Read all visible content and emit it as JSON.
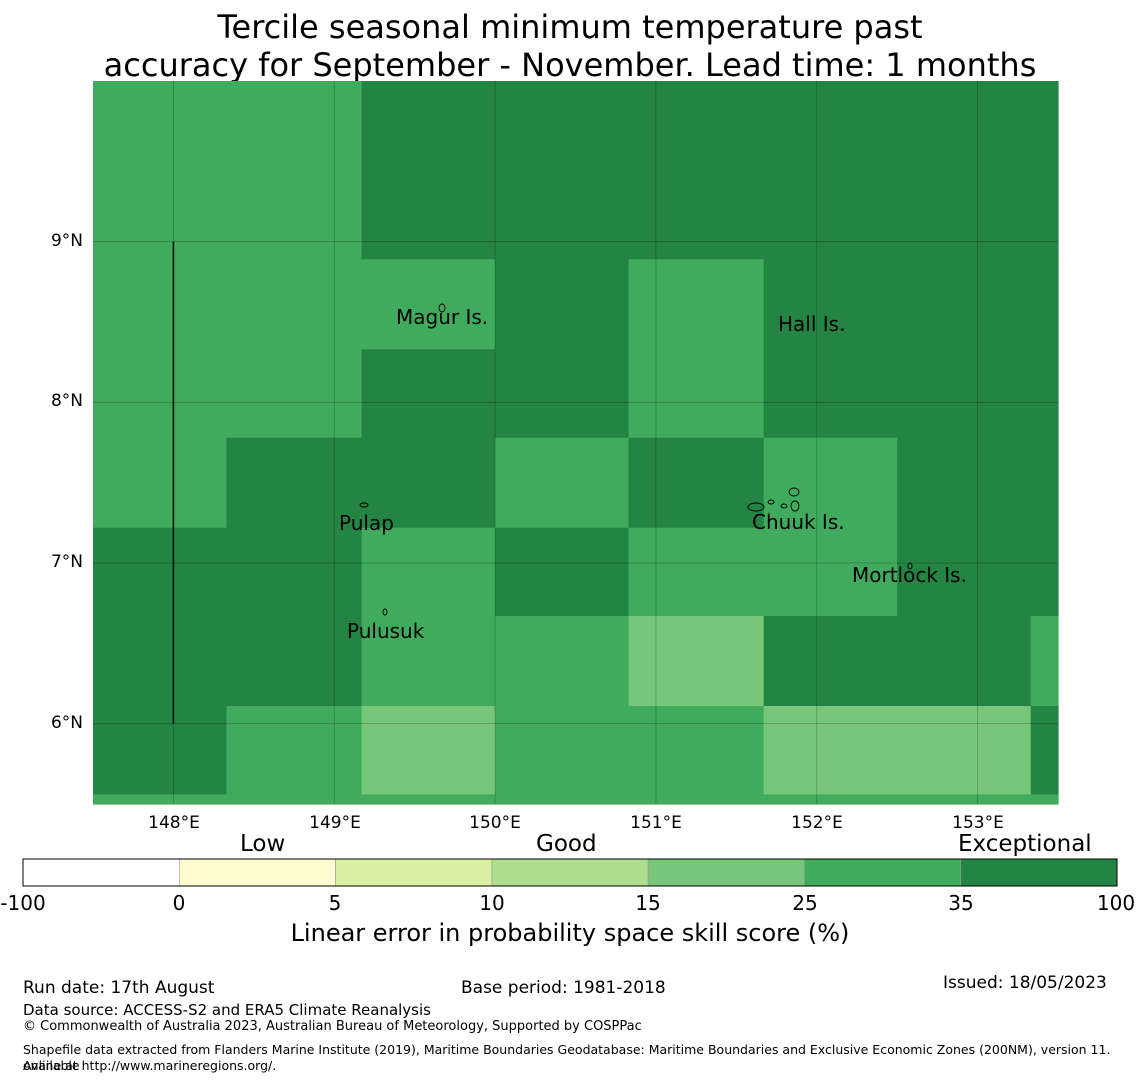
{
  "title": {
    "line1": "Tercile seasonal minimum temperature past",
    "line2": "accuracy for September - November. Lead time: 1 months"
  },
  "map": {
    "lon_labels": [
      "148°E",
      "149°E",
      "150°E",
      "151°E",
      "152°E",
      "153°E"
    ],
    "lat_labels": [
      "9°N",
      "8°N",
      "7°N",
      "6°N"
    ],
    "lon_range": [
      147.5,
      153.5
    ],
    "lat_range": [
      5.5,
      10.0
    ],
    "gridlines": true,
    "places": [
      {
        "name": "Magur Is.",
        "lon": 149.38,
        "lat": 8.5
      },
      {
        "name": "Hall Is.",
        "lon": 151.75,
        "lat": 8.46
      },
      {
        "name": "Pulap",
        "lon": 149.03,
        "lat": 7.24
      },
      {
        "name": "Chuuk Is.",
        "lon": 151.6,
        "lat": 7.25
      },
      {
        "name": "Mortlock Is.",
        "lon": 152.22,
        "lat": 6.92
      },
      {
        "name": "Pulusuk",
        "lon": 149.08,
        "lat": 6.58
      }
    ],
    "cells": [
      {
        "lon0": 147.5,
        "lon1": 149.17,
        "lat0": 8.89,
        "lat1": 10.0,
        "cls": "g35"
      },
      {
        "lon0": 149.17,
        "lon1": 153.5,
        "lat0": 8.89,
        "lat1": 10.0,
        "cls": "g100"
      },
      {
        "lon0": 147.5,
        "lon1": 149.17,
        "lat0": 8.33,
        "lat1": 8.89,
        "cls": "g35"
      },
      {
        "lon0": 149.17,
        "lon1": 150.0,
        "lat0": 8.33,
        "lat1": 8.89,
        "cls": "g35"
      },
      {
        "lon0": 150.0,
        "lon1": 150.83,
        "lat0": 7.78,
        "lat1": 8.89,
        "cls": "g100"
      },
      {
        "lon0": 150.83,
        "lon1": 151.67,
        "lat0": 7.78,
        "lat1": 8.89,
        "cls": "g35"
      },
      {
        "lon0": 151.67,
        "lon1": 153.5,
        "lat0": 7.78,
        "lat1": 8.89,
        "cls": "g100"
      },
      {
        "lon0": 147.5,
        "lon1": 149.17,
        "lat0": 7.78,
        "lat1": 8.33,
        "cls": "g35"
      },
      {
        "lon0": 149.17,
        "lon1": 150.0,
        "lat0": 7.78,
        "lat1": 8.33,
        "cls": "g100"
      },
      {
        "lon0": 147.5,
        "lon1": 148.33,
        "lat0": 7.22,
        "lat1": 7.78,
        "cls": "g35"
      },
      {
        "lon0": 148.33,
        "lon1": 150.0,
        "lat0": 7.22,
        "lat1": 7.78,
        "cls": "g100"
      },
      {
        "lon0": 150.0,
        "lon1": 150.83,
        "lat0": 7.22,
        "lat1": 7.78,
        "cls": "g35"
      },
      {
        "lon0": 150.83,
        "lon1": 151.67,
        "lat0": 7.22,
        "lat1": 7.78,
        "cls": "g100"
      },
      {
        "lon0": 151.67,
        "lon1": 152.5,
        "lat0": 7.22,
        "lat1": 7.78,
        "cls": "g35"
      },
      {
        "lon0": 152.5,
        "lon1": 153.5,
        "lat0": 7.22,
        "lat1": 7.78,
        "cls": "g100"
      },
      {
        "lon0": 147.5,
        "lon1": 149.17,
        "lat0": 6.11,
        "lat1": 7.22,
        "cls": "g100"
      },
      {
        "lon0": 149.17,
        "lon1": 150.0,
        "lat0": 6.11,
        "lat1": 7.22,
        "cls": "g35"
      },
      {
        "lon0": 150.0,
        "lon1": 150.83,
        "lat0": 6.67,
        "lat1": 7.22,
        "cls": "g100"
      },
      {
        "lon0": 150.83,
        "lon1": 152.5,
        "lat0": 6.67,
        "lat1": 7.22,
        "cls": "g35"
      },
      {
        "lon0": 152.5,
        "lon1": 153.5,
        "lat0": 6.67,
        "lat1": 7.22,
        "cls": "g100"
      },
      {
        "lon0": 150.0,
        "lon1": 150.83,
        "lat0": 6.11,
        "lat1": 6.67,
        "cls": "g35"
      },
      {
        "lon0": 150.83,
        "lon1": 151.67,
        "lat0": 6.11,
        "lat1": 6.67,
        "cls": "g25"
      },
      {
        "lon0": 151.67,
        "lon1": 153.33,
        "lat0": 6.11,
        "lat1": 6.67,
        "cls": "g100"
      },
      {
        "lon0": 153.33,
        "lon1": 153.5,
        "lat0": 6.11,
        "lat1": 6.67,
        "cls": "g35"
      },
      {
        "lon0": 147.5,
        "lon1": 148.33,
        "lat0": 5.56,
        "lat1": 6.11,
        "cls": "g100"
      },
      {
        "lon0": 148.33,
        "lon1": 149.17,
        "lat0": 5.56,
        "lat1": 6.11,
        "cls": "g35"
      },
      {
        "lon0": 149.17,
        "lon1": 150.0,
        "lat0": 5.56,
        "lat1": 6.11,
        "cls": "g25"
      },
      {
        "lon0": 150.0,
        "lon1": 151.67,
        "lat0": 5.56,
        "lat1": 6.11,
        "cls": "g35"
      },
      {
        "lon0": 151.67,
        "lon1": 153.33,
        "lat0": 5.56,
        "lat1": 6.11,
        "cls": "g25"
      },
      {
        "lon0": 153.33,
        "lon1": 153.5,
        "lat0": 5.56,
        "lat1": 6.11,
        "cls": "g100"
      },
      {
        "lon0": 147.5,
        "lon1": 153.5,
        "lat0": 5.5,
        "lat1": 5.56,
        "cls": "g35"
      }
    ],
    "boundary_line": {
      "lon": 148.0,
      "lat0": 6.0,
      "lat1": 9.0
    }
  },
  "colorbar": {
    "categories": [
      "Low",
      "Good",
      "Exceptional"
    ],
    "ticks": [
      "-100",
      "0",
      "5",
      "10",
      "15",
      "25",
      "35",
      "100"
    ],
    "colors": [
      "#ffffff",
      "#fffdd0",
      "#d9f0a3",
      "#addd8e",
      "#78c679",
      "#41ab5d",
      "#238443"
    ],
    "label": "Linear error in probability space skill score (%)"
  },
  "palette": {
    "g25": "#78c679",
    "g35": "#41ab5d",
    "g100": "#238443"
  },
  "footer": {
    "run_date": "Run date: 17th August",
    "base_period": "Base period: 1981-2018",
    "issued": "Issued: 18/05/2023",
    "data_source": "Data source: ACCESS-S2 and ERA5 Climate Reanalysis",
    "copyright": "© Commonwealth of Australia 2023, Australian Bureau of Meteorology, Supported by COSPPac",
    "shapefile_1": "Shapefile data extracted from Flanders Marine Institute (2019), Maritime Boundaries Geodatabase: Maritime Boundaries and Exclusive Economic Zones (200NM), version 11. Available",
    "shapefile_2": "online at http://www.marineregions.org/."
  }
}
